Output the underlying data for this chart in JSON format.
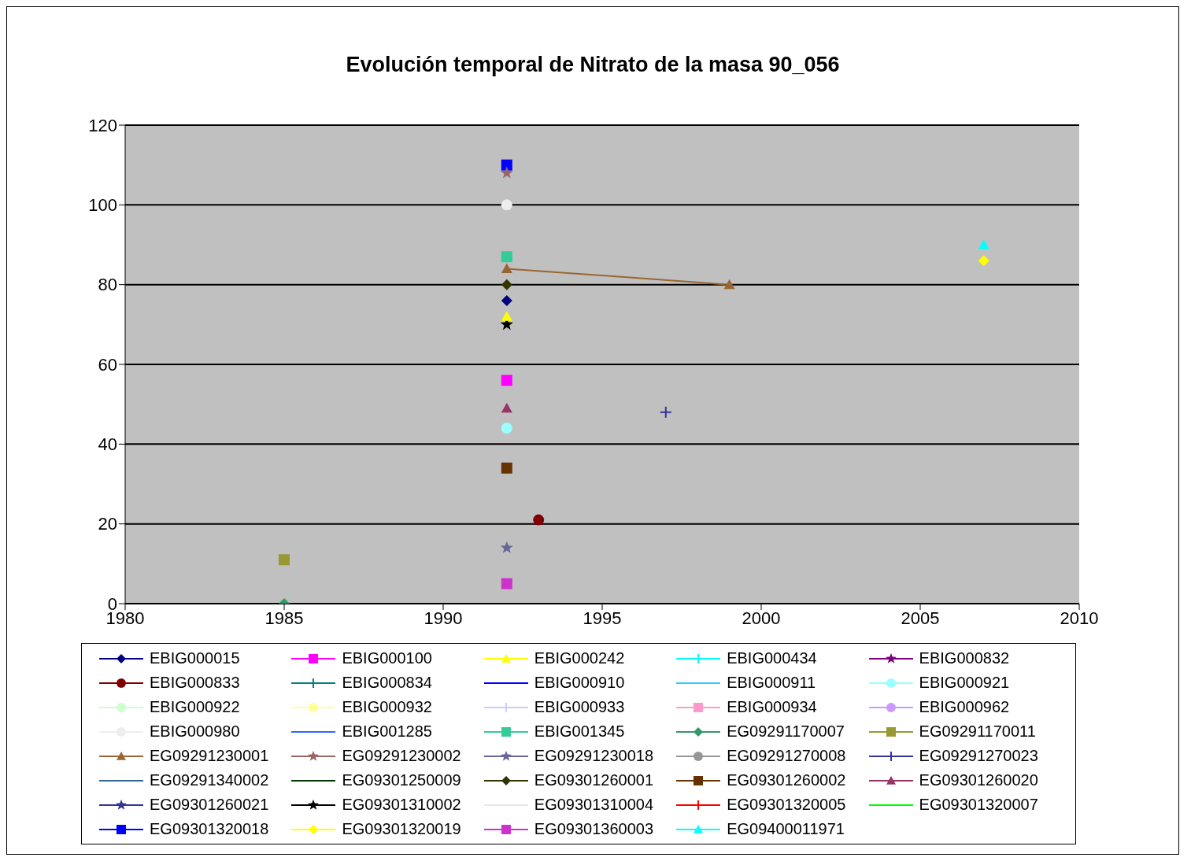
{
  "chart_data": {
    "type": "line",
    "title": "Evolución temporal de Nitrato de la masa 90_056",
    "x": [
      1985,
      1992,
      1993,
      1997,
      1999,
      2007
    ],
    "xlim": [
      1980,
      2010
    ],
    "xticks": [
      1980,
      1985,
      1990,
      1995,
      2000,
      2005,
      2010
    ],
    "ylim": [
      0,
      120
    ],
    "yticks": [
      0,
      20,
      40,
      60,
      80,
      100,
      120
    ],
    "grid": "y",
    "legend": "bottom",
    "line_style": "solid",
    "series": [
      {
        "name": "EBIG000015",
        "color": "#000080",
        "marker": "diamond",
        "values": [
          null,
          76,
          null,
          null,
          null,
          null
        ]
      },
      {
        "name": "EBIG000100",
        "color": "#ff00ff",
        "marker": "square",
        "values": [
          null,
          56,
          null,
          null,
          null,
          null
        ]
      },
      {
        "name": "EBIG000242",
        "color": "#ffff00",
        "marker": "triangle",
        "values": [
          null,
          72,
          null,
          null,
          null,
          null
        ]
      },
      {
        "name": "EBIG000434",
        "color": "#00ffff",
        "marker": "cross",
        "values": [
          null,
          null,
          null,
          null,
          null,
          null
        ]
      },
      {
        "name": "EBIG000832",
        "color": "#800080",
        "marker": "star",
        "values": [
          null,
          null,
          null,
          null,
          null,
          null
        ]
      },
      {
        "name": "EBIG000833",
        "color": "#800000",
        "marker": "circle",
        "values": [
          null,
          null,
          21,
          null,
          null,
          null
        ]
      },
      {
        "name": "EBIG000834",
        "color": "#008080",
        "marker": "cross",
        "values": [
          null,
          null,
          null,
          null,
          null,
          null
        ]
      },
      {
        "name": "EBIG000910",
        "color": "#0000ff",
        "marker": "none",
        "values": [
          null,
          null,
          null,
          null,
          null,
          null
        ]
      },
      {
        "name": "EBIG000911",
        "color": "#33ccff",
        "marker": "none",
        "values": [
          null,
          null,
          null,
          null,
          null,
          null
        ]
      },
      {
        "name": "EBIG000921",
        "color": "#99ffff",
        "marker": "circle",
        "values": [
          null,
          44,
          null,
          null,
          null,
          null
        ]
      },
      {
        "name": "EBIG000922",
        "color": "#ccffcc",
        "marker": "circle",
        "values": [
          null,
          null,
          null,
          null,
          null,
          null
        ]
      },
      {
        "name": "EBIG000932",
        "color": "#ffff99",
        "marker": "circle",
        "values": [
          null,
          null,
          null,
          null,
          null,
          null
        ]
      },
      {
        "name": "EBIG000933",
        "color": "#ccccff",
        "marker": "cross",
        "values": [
          null,
          null,
          null,
          null,
          null,
          null
        ]
      },
      {
        "name": "EBIG000934",
        "color": "#ff99cc",
        "marker": "square",
        "values": [
          null,
          null,
          null,
          null,
          null,
          null
        ]
      },
      {
        "name": "EBIG000962",
        "color": "#cc99ff",
        "marker": "circle",
        "values": [
          null,
          null,
          null,
          null,
          null,
          null
        ]
      },
      {
        "name": "EBIG000980",
        "color": "#eeeeee",
        "marker": "circle",
        "values": [
          null,
          100,
          null,
          null,
          null,
          null
        ]
      },
      {
        "name": "EBIG001285",
        "color": "#3366ff",
        "marker": "none",
        "values": [
          null,
          null,
          null,
          null,
          null,
          null
        ]
      },
      {
        "name": "EBIG001345",
        "color": "#33cc99",
        "marker": "square",
        "values": [
          null,
          87,
          null,
          null,
          null,
          null
        ]
      },
      {
        "name": "EG09291170007",
        "color": "#339966",
        "marker": "diamond",
        "values": [
          0,
          null,
          null,
          null,
          null,
          null
        ]
      },
      {
        "name": "EG09291170011",
        "color": "#999933",
        "marker": "square",
        "values": [
          11,
          null,
          null,
          null,
          null,
          null
        ]
      },
      {
        "name": "EG09291230001",
        "color": "#996633",
        "marker": "triangle",
        "values": [
          null,
          84,
          null,
          null,
          80,
          null
        ]
      },
      {
        "name": "EG09291230002",
        "color": "#996666",
        "marker": "star",
        "values": [
          null,
          108,
          null,
          null,
          null,
          null
        ]
      },
      {
        "name": "EG09291230018",
        "color": "#666699",
        "marker": "star",
        "values": [
          null,
          14,
          null,
          null,
          null,
          null
        ]
      },
      {
        "name": "EG09291270008",
        "color": "#969696",
        "marker": "circle",
        "values": [
          null,
          null,
          null,
          null,
          null,
          null
        ]
      },
      {
        "name": "EG09291270023",
        "color": "#333399",
        "marker": "cross",
        "values": [
          null,
          null,
          null,
          48,
          null,
          null
        ]
      },
      {
        "name": "EG09291340002",
        "color": "#336699",
        "marker": "none",
        "values": [
          null,
          null,
          null,
          null,
          null,
          null
        ]
      },
      {
        "name": "EG09301250009",
        "color": "#003300",
        "marker": "none",
        "values": [
          null,
          null,
          null,
          null,
          null,
          null
        ]
      },
      {
        "name": "EG09301260001",
        "color": "#333300",
        "marker": "diamond",
        "values": [
          null,
          80,
          null,
          null,
          null,
          null
        ]
      },
      {
        "name": "EG09301260002",
        "color": "#663300",
        "marker": "square",
        "values": [
          null,
          34,
          null,
          null,
          null,
          null
        ]
      },
      {
        "name": "EG09301260020",
        "color": "#993366",
        "marker": "triangle",
        "values": [
          null,
          49,
          null,
          null,
          null,
          null
        ]
      },
      {
        "name": "EG09301260021",
        "color": "#333399",
        "marker": "star",
        "values": [
          null,
          null,
          null,
          null,
          null,
          null
        ]
      },
      {
        "name": "EG09301310002",
        "color": "#000000",
        "marker": "star",
        "values": [
          null,
          70,
          null,
          null,
          null,
          null
        ]
      },
      {
        "name": "EG09301310004",
        "color": "#e8e8e8",
        "marker": "none",
        "values": [
          null,
          null,
          null,
          null,
          null,
          null
        ]
      },
      {
        "name": "EG09301320005",
        "color": "#ff0000",
        "marker": "cross",
        "values": [
          null,
          null,
          null,
          null,
          null,
          null
        ]
      },
      {
        "name": "EG09301320007",
        "color": "#00ff00",
        "marker": "none",
        "values": [
          null,
          null,
          null,
          null,
          null,
          null
        ]
      },
      {
        "name": "EG09301320018",
        "color": "#0000ff",
        "marker": "square",
        "values": [
          null,
          110,
          null,
          null,
          null,
          null
        ]
      },
      {
        "name": "EG09301320019",
        "color": "#ffff00",
        "marker": "diamond",
        "values": [
          null,
          null,
          null,
          null,
          null,
          86
        ]
      },
      {
        "name": "EG09301360003",
        "color": "#cc33cc",
        "marker": "square",
        "values": [
          null,
          5,
          null,
          null,
          null,
          null
        ]
      },
      {
        "name": "EG09400011971",
        "color": "#00ffff",
        "marker": "triangle",
        "values": [
          null,
          null,
          null,
          null,
          null,
          90
        ]
      }
    ]
  }
}
